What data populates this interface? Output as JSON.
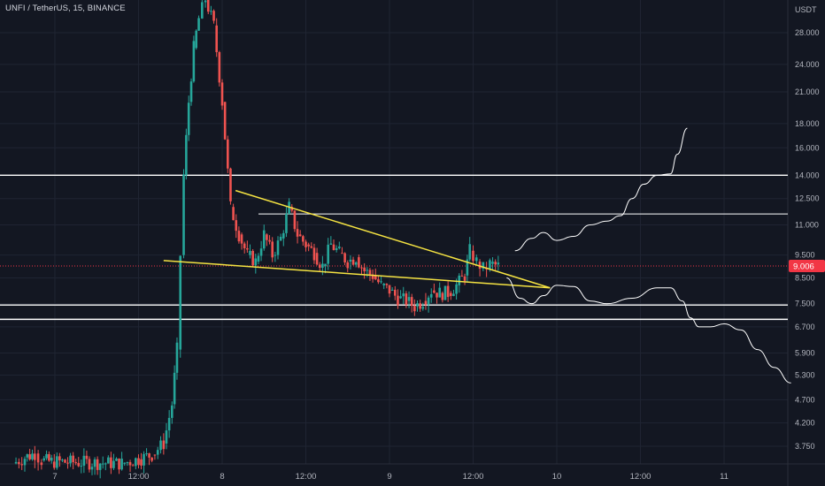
{
  "chart_data": {
    "type": "candlestick",
    "title": "UNFI / TetherUS, 15, BINANCE",
    "y_unit": "USDT",
    "y_scale": "log",
    "ylim": [
      3.4,
      34
    ],
    "x_ticks": [
      "7",
      "12:00",
      "8",
      "12:00",
      "9",
      "12:00",
      "10",
      "12:00",
      "11"
    ],
    "y_ticks": [
      28.0,
      24.0,
      21.0,
      18.0,
      16.0,
      14.0,
      12.5,
      11.0,
      9.5,
      8.5,
      7.5,
      6.7,
      5.9,
      5.3,
      4.7,
      4.2,
      3.75
    ],
    "y_tick_labels": [
      "28.000",
      "24.000",
      "21.000",
      "18.000",
      "16.000",
      "14.000",
      "12.500",
      "11.000",
      "9.500",
      "8.500",
      "7.500",
      "6.700",
      "5.900",
      "5.300",
      "4.700",
      "4.200",
      "3.750"
    ],
    "last_price": 9.006,
    "last_price_label": "9.006",
    "horizontal_levels": [
      14.0,
      11.6,
      7.45,
      6.95
    ],
    "trendlines": [
      {
        "kind": "descending-resistance",
        "from": [
          8.08,
          13.0
        ],
        "to": [
          9.96,
          8.1
        ]
      },
      {
        "kind": "rising-support",
        "from": [
          7.65,
          9.25
        ],
        "to": [
          9.96,
          8.1
        ]
      }
    ],
    "candles_x": [
      [
        6.75,
        3.45
      ],
      [
        6.82,
        3.55
      ],
      [
        6.88,
        3.62
      ],
      [
        6.92,
        3.5
      ],
      [
        6.98,
        3.48
      ],
      [
        7.4,
        3.45
      ],
      [
        7.5,
        3.52
      ],
      [
        7.58,
        3.6
      ],
      [
        7.65,
        3.8
      ],
      [
        7.7,
        4.6
      ],
      [
        7.73,
        6.0
      ],
      [
        7.75,
        9.5
      ],
      [
        7.77,
        14.0
      ],
      [
        7.8,
        20.0
      ],
      [
        7.83,
        26.0
      ],
      [
        7.86,
        30.0
      ],
      [
        7.9,
        33.0
      ],
      [
        7.95,
        29.0
      ],
      [
        8.0,
        20.0
      ],
      [
        8.05,
        12.0
      ],
      [
        8.1,
        10.5
      ],
      [
        8.15,
        9.5
      ],
      [
        8.2,
        9.2
      ],
      [
        8.25,
        10.5
      ],
      [
        8.3,
        9.5
      ],
      [
        8.35,
        10.3
      ],
      [
        8.4,
        12.0
      ],
      [
        8.45,
        10.5
      ],
      [
        8.5,
        10.0
      ],
      [
        8.55,
        9.6
      ],
      [
        8.6,
        9.0
      ],
      [
        8.65,
        10.0
      ],
      [
        8.7,
        9.6
      ],
      [
        8.75,
        9.2
      ],
      [
        8.8,
        9.4
      ],
      [
        8.85,
        8.8
      ],
      [
        8.9,
        8.6
      ],
      [
        8.95,
        8.2
      ],
      [
        9.0,
        8.0
      ],
      [
        9.05,
        7.7
      ],
      [
        9.1,
        7.6
      ],
      [
        9.15,
        7.4
      ],
      [
        9.2,
        7.6
      ],
      [
        9.25,
        8.0
      ],
      [
        9.3,
        7.9
      ],
      [
        9.35,
        7.9
      ],
      [
        9.4,
        8.2
      ],
      [
        9.45,
        8.6
      ],
      [
        9.48,
        9.7
      ],
      [
        9.52,
        9.2
      ],
      [
        9.56,
        8.9
      ],
      [
        9.6,
        9.1
      ],
      [
        9.65,
        9.0
      ]
    ],
    "projection_bullish": [
      [
        9.75,
        9.7
      ],
      [
        9.85,
        10.3
      ],
      [
        9.92,
        10.6
      ],
      [
        10.0,
        10.2
      ],
      [
        10.1,
        10.4
      ],
      [
        10.2,
        11.0
      ],
      [
        10.3,
        11.2
      ],
      [
        10.38,
        11.5
      ],
      [
        10.45,
        12.5
      ],
      [
        10.52,
        13.4
      ],
      [
        10.6,
        14.0
      ],
      [
        10.68,
        14.1
      ],
      [
        10.72,
        15.5
      ],
      [
        10.78,
        17.6
      ]
    ],
    "projection_bearish": [
      [
        9.7,
        8.5
      ],
      [
        9.78,
        7.7
      ],
      [
        9.85,
        7.5
      ],
      [
        9.92,
        7.8
      ],
      [
        10.0,
        8.2
      ],
      [
        10.1,
        8.15
      ],
      [
        10.2,
        7.6
      ],
      [
        10.3,
        7.5
      ],
      [
        10.45,
        7.7
      ],
      [
        10.6,
        8.1
      ],
      [
        10.68,
        8.1
      ],
      [
        10.75,
        7.6
      ],
      [
        10.8,
        7.0
      ],
      [
        10.85,
        6.7
      ],
      [
        10.92,
        6.7
      ],
      [
        11.0,
        6.8
      ],
      [
        11.1,
        6.6
      ],
      [
        11.2,
        6.0
      ],
      [
        11.3,
        5.5
      ],
      [
        11.4,
        5.1
      ]
    ],
    "colors": {
      "background": "#131722",
      "grid": "#1f2432",
      "text": "#b2b5be",
      "up": "#26a69a",
      "down": "#ef5350",
      "level": "#ffffff",
      "trendline": "#f5e342",
      "last_price": "#f23645"
    },
    "grid": true
  }
}
